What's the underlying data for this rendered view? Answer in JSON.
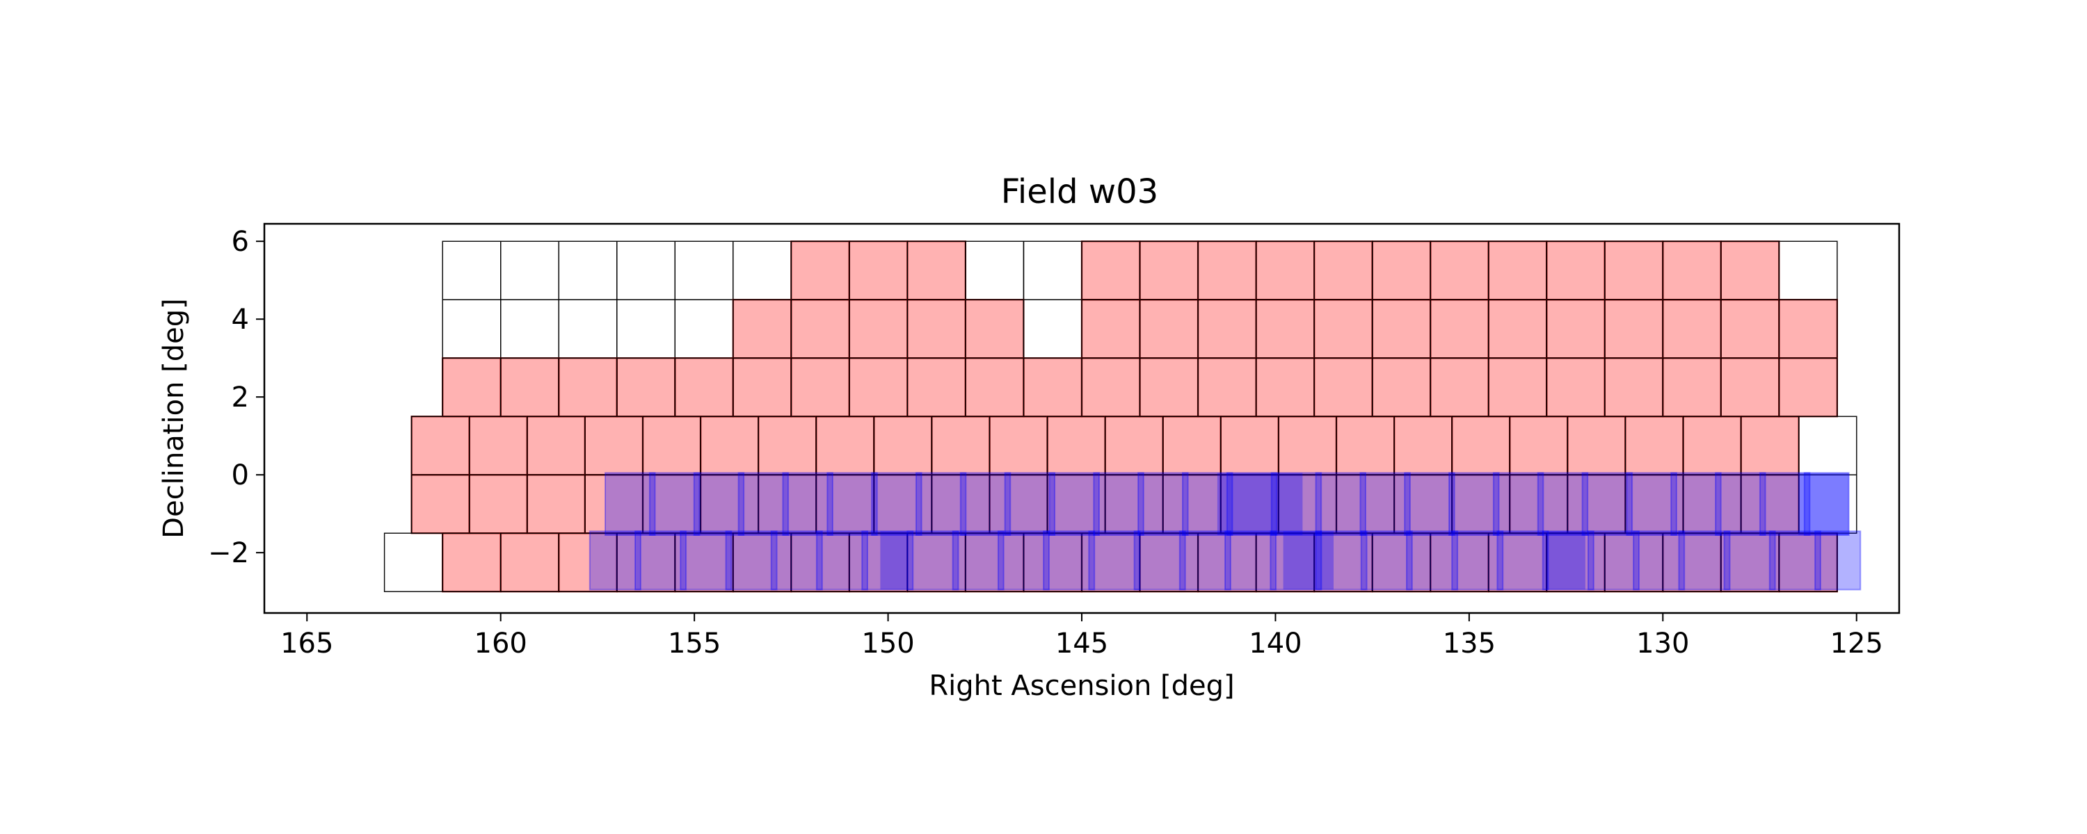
{
  "chart_data": {
    "type": "scatter",
    "title": "Field w03",
    "xlabel": "Right Ascension [deg]",
    "ylabel": "Declination [deg]",
    "xlim": [
      166.1,
      123.9
    ],
    "ylim": [
      -3.55,
      6.45
    ],
    "x_inverted": true,
    "xticks": [
      165,
      160,
      155,
      150,
      145,
      140,
      135,
      130,
      125
    ],
    "xtick_labels": [
      "165",
      "160",
      "155",
      "150",
      "145",
      "140",
      "135",
      "130",
      "125"
    ],
    "yticks": [
      -2,
      0,
      2,
      4,
      6
    ],
    "ytick_labels": [
      "−2",
      "0",
      "2",
      "4",
      "6"
    ],
    "grid": false,
    "legend": "none",
    "colors": {
      "outline": "#000000",
      "covered_fill": "#ff0000",
      "covered_fill_opacity": 0.3,
      "covered_edge": "#8b0000",
      "overlay_fill": "#0000ff",
      "overlay_fill_opacity": 0.3
    },
    "tiling_rows": [
      {
        "row": 1,
        "dec_center": 5.25,
        "dec_half_height": 0.75,
        "ra_start": 161.5,
        "ra_end": 125.5,
        "n_tiles": 24,
        "covered_ra_min": 127.0,
        "covered_ra_max": 152.5,
        "covered_gaps": [
          [
            145.0,
            148.0
          ]
        ]
      },
      {
        "row": 2,
        "dec_center": 3.75,
        "dec_half_height": 0.75,
        "ra_start": 161.5,
        "ra_end": 125.5,
        "n_tiles": 24,
        "covered_ra_min": 125.5,
        "covered_ra_max": 154.0,
        "covered_gaps": [
          [
            145.0,
            146.5
          ]
        ]
      },
      {
        "row": 3,
        "dec_center": 2.25,
        "dec_half_height": 0.75,
        "ra_start": 161.5,
        "ra_end": 125.5,
        "n_tiles": 24,
        "covered_ra_min": 125.5,
        "covered_ra_max": 161.5,
        "covered_gaps": []
      },
      {
        "row": 4,
        "dec_center": 0.75,
        "dec_half_height": 0.75,
        "ra_start": 162.3,
        "ra_end": 125.0,
        "n_tiles": 25,
        "covered_ra_min": 126.5,
        "covered_ra_max": 162.3,
        "covered_gaps": []
      },
      {
        "row": 5,
        "dec_center": -0.75,
        "dec_half_height": 0.75,
        "ra_start": 162.3,
        "ra_end": 125.0,
        "n_tiles": 25,
        "covered_ra_min": 126.5,
        "covered_ra_max": 162.3,
        "covered_gaps": []
      },
      {
        "row": 6,
        "dec_center": -2.25,
        "dec_half_height": 0.75,
        "ra_start": 163.0,
        "ra_end": 125.5,
        "n_tiles": 25,
        "covered_ra_min": 125.5,
        "covered_ra_max": 161.5,
        "covered_gaps": []
      }
    ],
    "overlay_strips": [
      {
        "dec_min": -1.55,
        "dec_max": 0.05,
        "ra_min": 125.2,
        "ra_max": 157.3,
        "n_segments": 28,
        "dark_segments": [
          [
            141.5,
            139.3
          ],
          [
            126.5,
            125.2
          ]
        ]
      },
      {
        "dec_min": -2.95,
        "dec_max": -1.45,
        "ra_min": 124.9,
        "ra_max": 157.7,
        "n_segments": 28,
        "dark_segments": [
          [
            150.2,
            149.5
          ],
          [
            139.8,
            138.5
          ],
          [
            133.0,
            132.0
          ]
        ]
      }
    ]
  }
}
